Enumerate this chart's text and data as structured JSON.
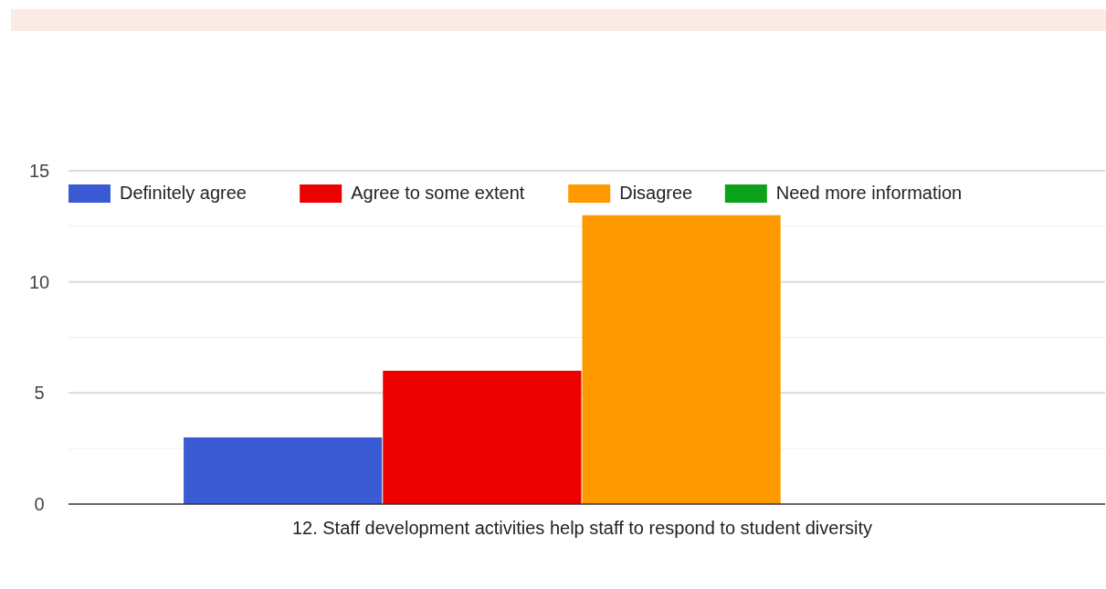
{
  "chart_data": {
    "type": "bar",
    "categories": [
      "12. Staff development activities help staff to respond to student diversity"
    ],
    "series": [
      {
        "name": "Definitely agree",
        "color": "#3a5bd4",
        "values": [
          3
        ]
      },
      {
        "name": "Agree to some extent",
        "color": "#ec0000",
        "values": [
          6
        ]
      },
      {
        "name": "Disagree",
        "color": "#ff9900",
        "values": [
          13
        ]
      },
      {
        "name": "Need more information",
        "color": "#0ca11a",
        "values": [
          0
        ]
      }
    ],
    "ylim": [
      0,
      15
    ],
    "yticks": [
      0,
      {
        "value": 2.5,
        "label": null
      },
      5,
      {
        "value": 7.5,
        "label": null
      },
      10,
      {
        "value": 12.5,
        "label": null
      },
      15
    ],
    "grid": true,
    "legend": "top"
  }
}
